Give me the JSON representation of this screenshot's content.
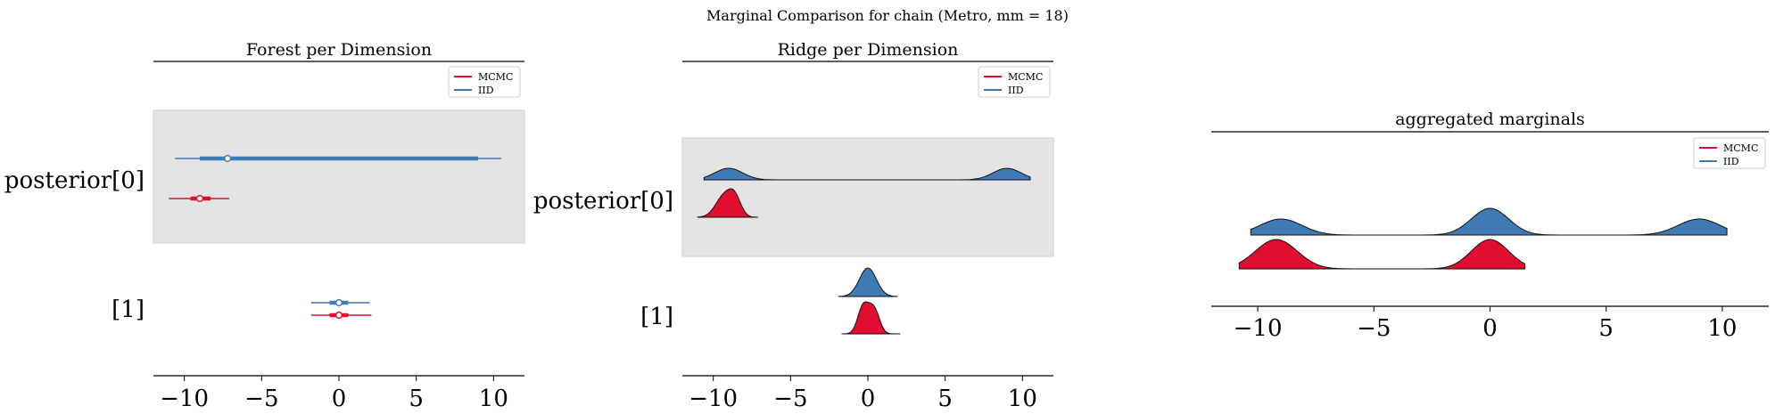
{
  "suptitle": "Marginal Comparison for chain (Metro, mm = 18)",
  "colors": {
    "mcmc": "#e00d30",
    "iid": "#3f7bb5",
    "band": "#e4e4e4"
  },
  "legend": {
    "items": [
      "MCMC",
      "IID"
    ],
    "position": "top-right"
  },
  "chart_data": [
    {
      "type": "forest",
      "title": "Forest per Dimension",
      "xlim": [
        -12,
        12
      ],
      "xticks": [
        -10,
        -5,
        0,
        5,
        10
      ],
      "xtick_labels": [
        "−10",
        "−5",
        "0",
        "5",
        "10"
      ],
      "ylabels": [
        "posterior[0]",
        "[1]"
      ],
      "highlight_row": 0,
      "series": [
        {
          "name": "IID",
          "rows": [
            {
              "median": -7.2,
              "hdi_outer": [
                -10.6,
                10.5
              ],
              "hdi_inner": [
                -9.0,
                9.0
              ]
            },
            {
              "median": 0.0,
              "hdi_outer": [
                -1.8,
                2.0
              ],
              "hdi_inner": [
                -0.6,
                0.6
              ]
            }
          ]
        },
        {
          "name": "MCMC",
          "rows": [
            {
              "median": -9.0,
              "hdi_outer": [
                -11.0,
                -7.1
              ],
              "hdi_inner": [
                -9.6,
                -8.3
              ]
            },
            {
              "median": 0.0,
              "hdi_outer": [
                -1.8,
                2.1
              ],
              "hdi_inner": [
                -0.6,
                0.6
              ]
            }
          ]
        }
      ]
    },
    {
      "type": "ridge",
      "title": "Ridge per Dimension",
      "xlim": [
        -12,
        12
      ],
      "xticks": [
        -10,
        -5,
        0,
        5,
        10
      ],
      "xtick_labels": [
        "−10",
        "−5",
        "0",
        "5",
        "10"
      ],
      "ylabels": [
        "posterior[0]",
        "[1]"
      ],
      "highlight_row": 0,
      "series": [
        {
          "name": "IID",
          "rows": [
            {
              "range": [
                -10.6,
                10.5
              ],
              "modes": [
                [
                  -9.0,
                  0.9,
                  1.0
                ],
                [
                  9.0,
                  0.9,
                  1.0
                ]
              ]
            },
            {
              "range": [
                -1.9,
                1.9
              ],
              "modes": [
                [
                  0.0,
                  0.55,
                  1.0
                ]
              ]
            }
          ]
        },
        {
          "name": "MCMC",
          "rows": [
            {
              "range": [
                -11.0,
                -7.1
              ],
              "modes": [
                [
                  -9.3,
                  0.55,
                  0.9
                ],
                [
                  -8.6,
                  0.4,
                  0.7
                ]
              ]
            },
            {
              "range": [
                -1.7,
                2.1
              ],
              "modes": [
                [
                  -0.3,
                  0.35,
                  0.9
                ],
                [
                  0.4,
                  0.35,
                  0.8
                ]
              ]
            }
          ]
        }
      ]
    },
    {
      "type": "ridge",
      "title": "aggregated marginals",
      "xlim": [
        -12,
        12
      ],
      "xticks": [
        -10,
        -5,
        0,
        5,
        10
      ],
      "xtick_labels": [
        "−10",
        "−5",
        "0",
        "5",
        "10"
      ],
      "series": [
        {
          "name": "IID",
          "range": [
            -10.3,
            10.2
          ],
          "modes": [
            [
              -9.0,
              0.9,
              0.6
            ],
            [
              0.0,
              0.8,
              1.0
            ],
            [
              9.0,
              0.9,
              0.6
            ]
          ]
        },
        {
          "name": "MCMC",
          "range": [
            -10.8,
            1.5
          ],
          "modes": [
            [
              -9.2,
              0.9,
              1.0
            ],
            [
              0.0,
              0.8,
              1.0
            ]
          ]
        }
      ]
    }
  ]
}
